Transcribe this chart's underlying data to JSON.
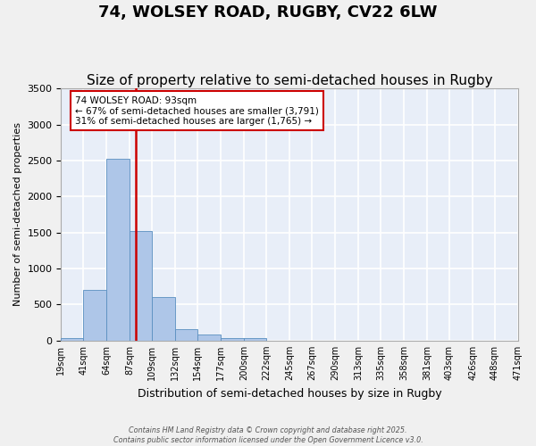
{
  "title": "74, WOLSEY ROAD, RUGBY, CV22 6LW",
  "subtitle": "Size of property relative to semi-detached houses in Rugby",
  "xlabel": "Distribution of semi-detached houses by size in Rugby",
  "ylabel": "Number of semi-detached properties",
  "annotation_line1": "74 WOLSEY ROAD: 93sqm",
  "annotation_line2": "← 67% of semi-detached houses are smaller (3,791)",
  "annotation_line3": "31% of semi-detached houses are larger (1,765) →",
  "property_size": 93,
  "bins": [
    19,
    41,
    64,
    87,
    109,
    132,
    154,
    177,
    200,
    222,
    245,
    267,
    290,
    313,
    335,
    358,
    381,
    403,
    426,
    448,
    471
  ],
  "bar_values": [
    30,
    700,
    2520,
    1520,
    610,
    160,
    90,
    40,
    30,
    0,
    0,
    0,
    0,
    0,
    0,
    0,
    0,
    0,
    0,
    0
  ],
  "bar_color": "#aec6e8",
  "bar_edge_color": "#5a8fc0",
  "vline_color": "#cc0000",
  "background_color": "#e8eef8",
  "grid_color": "#ffffff",
  "ylim": [
    0,
    3500
  ],
  "yticks": [
    0,
    500,
    1000,
    1500,
    2000,
    2500,
    3000,
    3500
  ],
  "footer_line1": "Contains HM Land Registry data © Crown copyright and database right 2025.",
  "footer_line2": "Contains public sector information licensed under the Open Government Licence v3.0.",
  "annotation_box_color": "#cc0000",
  "title_fontsize": 13,
  "subtitle_fontsize": 11,
  "tick_labels": [
    "19sqm",
    "41sqm",
    "64sqm",
    "87sqm",
    "109sqm",
    "132sqm",
    "154sqm",
    "177sqm",
    "200sqm",
    "222sqm",
    "245sqm",
    "267sqm",
    "290sqm",
    "313sqm",
    "335sqm",
    "358sqm",
    "381sqm",
    "403sqm",
    "426sqm",
    "448sqm",
    "471sqm"
  ]
}
